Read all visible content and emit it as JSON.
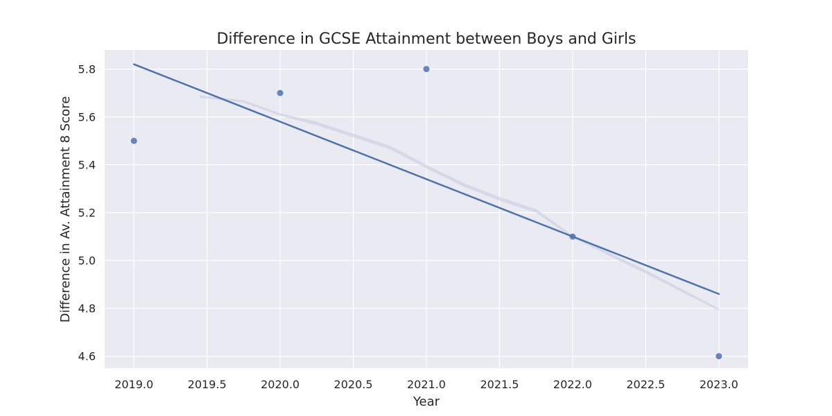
{
  "chart_data": {
    "type": "scatter",
    "title": "Difference in GCSE Attainment between Boys and Girls",
    "xlabel": "Year",
    "ylabel": "Difference in Av. Attainment 8 Score",
    "xlim": [
      2018.8,
      2023.2
    ],
    "ylim": [
      4.55,
      5.88
    ],
    "xticks": [
      2019.0,
      2019.5,
      2020.0,
      2020.5,
      2021.0,
      2021.5,
      2022.0,
      2022.5,
      2023.0
    ],
    "xtick_labels": [
      "2019.0",
      "2019.5",
      "2020.0",
      "2020.5",
      "2021.0",
      "2021.5",
      "2022.0",
      "2022.5",
      "2023.0"
    ],
    "yticks": [
      4.6,
      4.8,
      5.0,
      5.2,
      5.4,
      5.6,
      5.8
    ],
    "ytick_labels": [
      "4.6",
      "4.8",
      "5.0",
      "5.2",
      "5.4",
      "5.6",
      "5.8"
    ],
    "grid": true,
    "background_color": "#eaeaf2",
    "point_color": "#4c72b0",
    "line_color": "#4c72b0",
    "band_color": "#c7cde0",
    "points": [
      {
        "x": 2019,
        "y": 5.5
      },
      {
        "x": 2020,
        "y": 5.7
      },
      {
        "x": 2021,
        "y": 5.8
      },
      {
        "x": 2022,
        "y": 5.1
      },
      {
        "x": 2023,
        "y": 4.6
      }
    ],
    "regression_line": {
      "x": [
        2019,
        2023
      ],
      "y": [
        5.82,
        4.86
      ]
    },
    "confidence_band": [
      {
        "x": 2019.45,
        "lower": 5.68,
        "upper": 5.69
      },
      {
        "x": 2019.75,
        "lower": 5.66,
        "upper": 5.67
      },
      {
        "x": 2020.0,
        "lower": 5.605,
        "upper": 5.615
      },
      {
        "x": 2020.25,
        "lower": 5.565,
        "upper": 5.58
      },
      {
        "x": 2020.5,
        "lower": 5.515,
        "upper": 5.53
      },
      {
        "x": 2020.75,
        "lower": 5.465,
        "upper": 5.48
      },
      {
        "x": 2021.0,
        "lower": 5.385,
        "upper": 5.4
      },
      {
        "x": 2021.25,
        "lower": 5.31,
        "upper": 5.325
      },
      {
        "x": 2021.5,
        "lower": 5.25,
        "upper": 5.265
      },
      {
        "x": 2021.75,
        "lower": 5.2,
        "upper": 5.215
      },
      {
        "x": 2022.0,
        "lower": 5.095,
        "upper": 5.105
      },
      {
        "x": 2022.5,
        "lower": 4.945,
        "upper": 4.96
      },
      {
        "x": 2023.0,
        "lower": 4.79,
        "upper": 4.8
      }
    ]
  }
}
